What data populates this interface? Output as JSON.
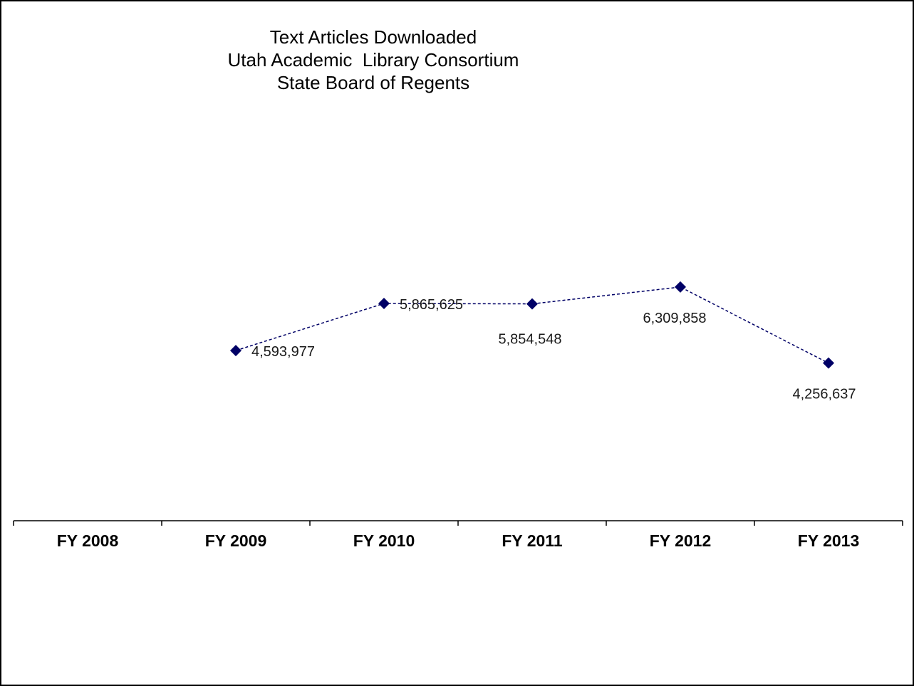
{
  "chart_data": {
    "type": "line",
    "title": [
      "Text Articles Downloaded",
      "Utah Academic  Library Consortium",
      "State Board of Regents"
    ],
    "xlabel": "",
    "ylabel": "",
    "categories": [
      "FY 2008",
      "FY 2009",
      "FY 2010",
      "FY 2011",
      "FY 2012",
      "FY 2013"
    ],
    "series": [
      {
        "values": [
          null,
          4593977,
          5865625,
          5854548,
          6309858,
          4256637
        ],
        "labels": [
          "",
          "4,593,977",
          "5,865,625",
          "5,854,548",
          "6,309,858",
          "4,256,637"
        ],
        "color": "#000066",
        "line_style": "dashed",
        "marker": "diamond"
      }
    ],
    "ylim": [
      0,
      11000000
    ],
    "grid": false,
    "legend": "none",
    "y_axis_visible": false
  }
}
